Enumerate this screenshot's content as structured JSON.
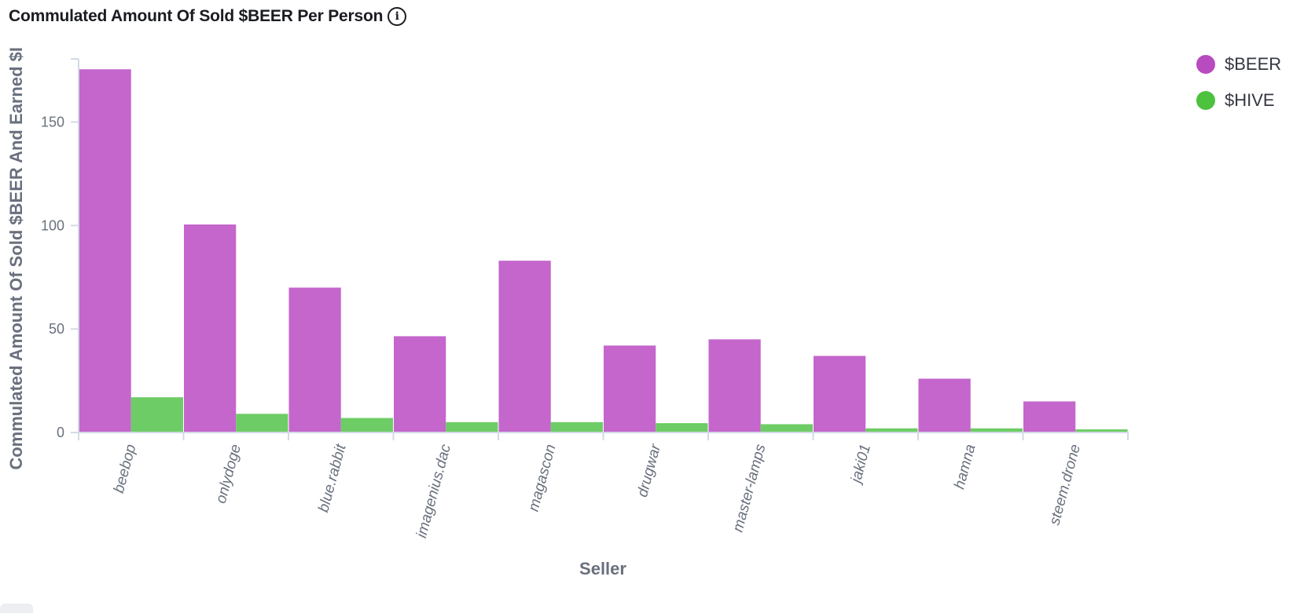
{
  "header": {
    "title": "Commulated Amount Of Sold $BEER Per Person",
    "info_icon": "info-circle-icon"
  },
  "colors": {
    "beer": "#c466cc",
    "hive": "#6dcc65",
    "legend_beer": "#b84bc0",
    "legend_hive": "#4dc23f",
    "axis": "#d3dae6",
    "text": "#69707d"
  },
  "legend": {
    "position": "top-right",
    "items": [
      {
        "label": "$BEER",
        "color": "#b84bc0"
      },
      {
        "label": "$HIVE",
        "color": "#4dc23f"
      }
    ]
  },
  "chart_data": {
    "type": "bar",
    "title": "Commulated Amount Of Sold $BEER Per Person",
    "xlabel": "Seller",
    "ylabel": "Commulated Amount Of Sold $BEER And Earned $I",
    "ylim": [
      0,
      180
    ],
    "yticks": [
      0,
      50,
      100,
      150
    ],
    "grid": false,
    "categories": [
      "beebop",
      "onlydoge",
      "blue.rabbit",
      "imagenius.dac",
      "magascon",
      "drugwar",
      "master-lamps",
      "jaki01",
      "hamna",
      "steem.drone"
    ],
    "series": [
      {
        "name": "$BEER",
        "values": [
          175.5,
          100.5,
          70,
          46.5,
          83,
          42,
          45,
          37,
          26,
          15
        ]
      },
      {
        "name": "$HIVE",
        "values": [
          17,
          9,
          7,
          5,
          5,
          4.5,
          4,
          2,
          2,
          1.5
        ]
      }
    ]
  }
}
